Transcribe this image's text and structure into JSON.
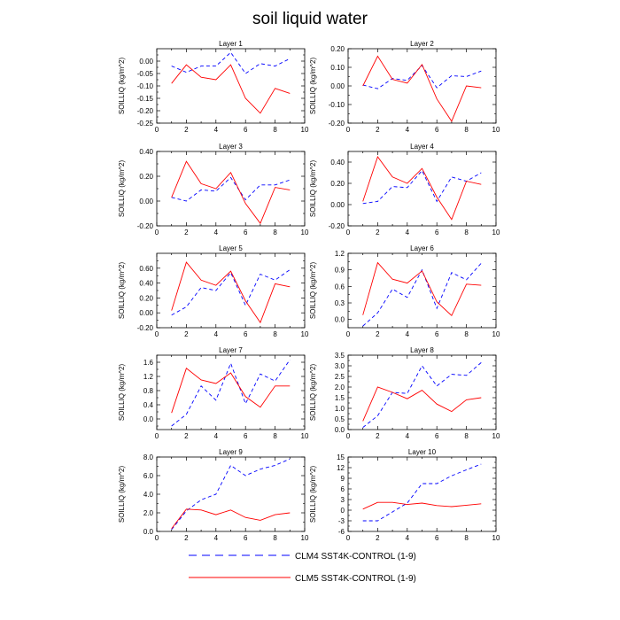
{
  "figure": {
    "title": "soil liquid water",
    "colors": {
      "clm4": "#0000ff",
      "clm5": "#ff0000"
    }
  },
  "legend": [
    {
      "label": "CLM4 SST4K-CONTROL (1-9)",
      "color": "#0000ff",
      "style": "dashed"
    },
    {
      "label": "CLM5 SST4K-CONTROL (1-9)",
      "color": "#ff0000",
      "style": "solid"
    }
  ],
  "chart_data": [
    {
      "type": "line",
      "title": "Layer 1",
      "ylabel": "SOILLIQ  (kg/m^2)",
      "xlim": [
        0,
        10
      ],
      "xticks": [
        0,
        2,
        4,
        6,
        8,
        10
      ],
      "ylim": [
        -0.25,
        0.05
      ],
      "yticks": [
        -0.25,
        -0.2,
        -0.15,
        -0.1,
        -0.05,
        0.0
      ],
      "ytick_labels": [
        "-0.25",
        "-0.20",
        "-0.15",
        "-0.10",
        "-0.05",
        "0.00"
      ],
      "x": [
        1,
        2,
        3,
        4,
        5,
        6,
        7,
        8,
        9
      ],
      "series": [
        {
          "name": "CLM4 SST4K-CONTROL (1-9)",
          "values": [
            -0.02,
            -0.045,
            -0.02,
            -0.02,
            0.035,
            -0.05,
            -0.01,
            -0.02,
            0.01
          ]
        },
        {
          "name": "CLM5 SST4K-CONTROL (1-9)",
          "values": [
            -0.09,
            -0.015,
            -0.065,
            -0.075,
            -0.015,
            -0.15,
            -0.21,
            -0.11,
            -0.13
          ]
        }
      ]
    },
    {
      "type": "line",
      "title": "Layer 2",
      "ylabel": "SOILLIQ  (kg/m^2)",
      "xlim": [
        0,
        10
      ],
      "xticks": [
        0,
        2,
        4,
        6,
        8,
        10
      ],
      "ylim": [
        -0.2,
        0.2
      ],
      "yticks": [
        -0.2,
        -0.1,
        0.0,
        0.1,
        0.2
      ],
      "ytick_labels": [
        "-0.20",
        "-0.10",
        "0.00",
        "0.10",
        "0.20"
      ],
      "x": [
        1,
        2,
        3,
        4,
        5,
        6,
        7,
        8,
        9
      ],
      "series": [
        {
          "name": "CLM4 SST4K-CONTROL (1-9)",
          "values": [
            0.005,
            -0.015,
            0.04,
            0.03,
            0.11,
            -0.01,
            0.055,
            0.05,
            0.08
          ]
        },
        {
          "name": "CLM5 SST4K-CONTROL (1-9)",
          "values": [
            0.0,
            0.16,
            0.035,
            0.015,
            0.115,
            -0.07,
            -0.19,
            0.0,
            -0.01
          ]
        }
      ]
    },
    {
      "type": "line",
      "title": "Layer 3",
      "ylabel": "SOILLIQ  (kg/m^2)",
      "xlim": [
        0,
        10
      ],
      "xticks": [
        0,
        2,
        4,
        6,
        8,
        10
      ],
      "ylim": [
        -0.2,
        0.4
      ],
      "yticks": [
        -0.2,
        0.0,
        0.2,
        0.4
      ],
      "ytick_labels": [
        "-0.20",
        "0.00",
        "0.20",
        "0.40"
      ],
      "x": [
        1,
        2,
        3,
        4,
        5,
        6,
        7,
        8,
        9
      ],
      "series": [
        {
          "name": "CLM4 SST4K-CONTROL (1-9)",
          "values": [
            0.03,
            0.0,
            0.09,
            0.08,
            0.19,
            0.01,
            0.13,
            0.13,
            0.17
          ]
        },
        {
          "name": "CLM5 SST4K-CONTROL (1-9)",
          "values": [
            0.03,
            0.32,
            0.14,
            0.1,
            0.23,
            -0.02,
            -0.18,
            0.11,
            0.09
          ]
        }
      ]
    },
    {
      "type": "line",
      "title": "Layer 4",
      "ylabel": "SOILLIQ  (kg/m^2)",
      "xlim": [
        0,
        10
      ],
      "xticks": [
        0,
        2,
        4,
        6,
        8,
        10
      ],
      "ylim": [
        -0.2,
        0.5
      ],
      "yticks": [
        -0.2,
        0.0,
        0.2,
        0.4
      ],
      "ytick_labels": [
        "-0.20",
        "0.00",
        "0.20",
        "0.40"
      ],
      "x": [
        1,
        2,
        3,
        4,
        5,
        6,
        7,
        8,
        9
      ],
      "series": [
        {
          "name": "CLM4 SST4K-CONTROL (1-9)",
          "values": [
            0.01,
            0.03,
            0.17,
            0.16,
            0.32,
            0.03,
            0.26,
            0.22,
            0.3
          ]
        },
        {
          "name": "CLM5 SST4K-CONTROL (1-9)",
          "values": [
            0.03,
            0.45,
            0.26,
            0.2,
            0.34,
            0.07,
            -0.14,
            0.22,
            0.19
          ]
        }
      ]
    },
    {
      "type": "line",
      "title": "Layer 5",
      "ylabel": "SOILLIQ  (kg/m^2)",
      "xlim": [
        0,
        10
      ],
      "xticks": [
        0,
        2,
        4,
        6,
        8,
        10
      ],
      "ylim": [
        -0.2,
        0.8
      ],
      "yticks": [
        -0.2,
        0.0,
        0.2,
        0.4,
        0.6
      ],
      "ytick_labels": [
        "-0.20",
        "0.00",
        "0.20",
        "0.40",
        "0.60"
      ],
      "x": [
        1,
        2,
        3,
        4,
        5,
        6,
        7,
        8,
        9
      ],
      "series": [
        {
          "name": "CLM4 SST4K-CONTROL (1-9)",
          "values": [
            -0.03,
            0.08,
            0.34,
            0.3,
            0.54,
            0.1,
            0.52,
            0.44,
            0.58
          ]
        },
        {
          "name": "CLM5 SST4K-CONTROL (1-9)",
          "values": [
            0.03,
            0.68,
            0.44,
            0.37,
            0.56,
            0.16,
            -0.13,
            0.39,
            0.35
          ]
        }
      ]
    },
    {
      "type": "line",
      "title": "Layer 6",
      "ylabel": "SOILLIQ  (kg/m^2)",
      "xlim": [
        0,
        10
      ],
      "xticks": [
        0,
        2,
        4,
        6,
        8,
        10
      ],
      "ylim": [
        -0.15,
        1.2
      ],
      "yticks": [
        0.0,
        0.3,
        0.6,
        0.9,
        1.2
      ],
      "ytick_labels": [
        "0.0",
        "0.3",
        "0.6",
        "0.9",
        "1.2"
      ],
      "x": [
        1,
        2,
        3,
        4,
        5,
        6,
        7,
        8,
        9
      ],
      "series": [
        {
          "name": "CLM4 SST4K-CONTROL (1-9)",
          "values": [
            -0.12,
            0.12,
            0.55,
            0.4,
            0.9,
            0.2,
            0.85,
            0.72,
            1.02
          ]
        },
        {
          "name": "CLM5 SST4K-CONTROL (1-9)",
          "values": [
            0.08,
            1.03,
            0.73,
            0.66,
            0.88,
            0.32,
            0.07,
            0.64,
            0.62
          ]
        }
      ]
    },
    {
      "type": "line",
      "title": "Layer 7",
      "ylabel": "SOILLIQ  (kg/m^2)",
      "xlim": [
        0,
        10
      ],
      "xticks": [
        0,
        2,
        4,
        6,
        8,
        10
      ],
      "ylim": [
        -0.3,
        1.8
      ],
      "yticks": [
        0.0,
        0.4,
        0.8,
        1.2,
        1.6
      ],
      "ytick_labels": [
        "0.0",
        "0.4",
        "0.8",
        "1.2",
        "1.6"
      ],
      "x": [
        1,
        2,
        3,
        4,
        5,
        6,
        7,
        8,
        9
      ],
      "series": [
        {
          "name": "CLM4 SST4K-CONTROL (1-9)",
          "values": [
            -0.2,
            0.13,
            0.93,
            0.53,
            1.57,
            0.43,
            1.27,
            1.07,
            1.67
          ]
        },
        {
          "name": "CLM5 SST4K-CONTROL (1-9)",
          "values": [
            0.17,
            1.43,
            1.1,
            1.0,
            1.3,
            0.63,
            0.33,
            0.93,
            0.93
          ]
        }
      ]
    },
    {
      "type": "line",
      "title": "Layer 8",
      "ylabel": "SOILLIQ  (kg/m^2)",
      "xlim": [
        0,
        10
      ],
      "xticks": [
        0,
        2,
        4,
        6,
        8,
        10
      ],
      "ylim": [
        0.0,
        3.5
      ],
      "yticks": [
        0.0,
        0.5,
        1.0,
        1.5,
        2.0,
        2.5,
        3.0,
        3.5
      ],
      "ytick_labels": [
        "0.0",
        "0.5",
        "1.0",
        "1.5",
        "2.0",
        "2.5",
        "3.0",
        "3.5"
      ],
      "x": [
        1,
        2,
        3,
        4,
        5,
        6,
        7,
        8,
        9
      ],
      "series": [
        {
          "name": "CLM4 SST4K-CONTROL (1-9)",
          "values": [
            0.1,
            0.65,
            1.75,
            1.7,
            3.0,
            2.05,
            2.6,
            2.55,
            3.15
          ]
        },
        {
          "name": "CLM5 SST4K-CONTROL (1-9)",
          "values": [
            0.4,
            2.0,
            1.75,
            1.45,
            1.85,
            1.2,
            0.85,
            1.4,
            1.5
          ]
        }
      ]
    },
    {
      "type": "line",
      "title": "Layer 9",
      "ylabel": "SOILLIQ  (kg/m^2)",
      "xlim": [
        0,
        10
      ],
      "xticks": [
        0,
        2,
        4,
        6,
        8,
        10
      ],
      "ylim": [
        0.0,
        8.0
      ],
      "yticks": [
        0.0,
        2.0,
        4.0,
        6.0,
        8.0
      ],
      "ytick_labels": [
        "0.0",
        "2.0",
        "4.0",
        "6.0",
        "8.0"
      ],
      "x": [
        1,
        2,
        3,
        4,
        5,
        6,
        7,
        8,
        9
      ],
      "series": [
        {
          "name": "CLM4 SST4K-CONTROL (1-9)",
          "values": [
            0.2,
            2.2,
            3.4,
            4.0,
            7.1,
            6.0,
            6.7,
            7.1,
            7.8
          ]
        },
        {
          "name": "CLM5 SST4K-CONTROL (1-9)",
          "values": [
            0.3,
            2.4,
            2.3,
            1.8,
            2.3,
            1.5,
            1.2,
            1.8,
            2.0
          ]
        }
      ]
    },
    {
      "type": "line",
      "title": "Layer 10",
      "ylabel": "SOILLIQ  (kg/m^2)",
      "xlim": [
        0,
        10
      ],
      "xticks": [
        0,
        2,
        4,
        6,
        8,
        10
      ],
      "ylim": [
        -6,
        15
      ],
      "yticks": [
        -6,
        -3,
        0,
        3,
        6,
        9,
        12,
        15
      ],
      "ytick_labels": [
        "-6",
        "-3",
        "0",
        "3",
        "6",
        "9",
        "12",
        "15"
      ],
      "x": [
        1,
        2,
        3,
        4,
        5,
        6,
        7,
        8,
        9
      ],
      "series": [
        {
          "name": "CLM4 SST4K-CONTROL (1-9)",
          "values": [
            -3.0,
            -3.0,
            -0.5,
            2.0,
            7.5,
            7.5,
            9.7,
            11.4,
            13.0
          ]
        },
        {
          "name": "CLM5 SST4K-CONTROL (1-9)",
          "values": [
            0.3,
            2.2,
            2.2,
            1.6,
            2.0,
            1.3,
            1.0,
            1.4,
            1.8
          ]
        }
      ]
    }
  ]
}
